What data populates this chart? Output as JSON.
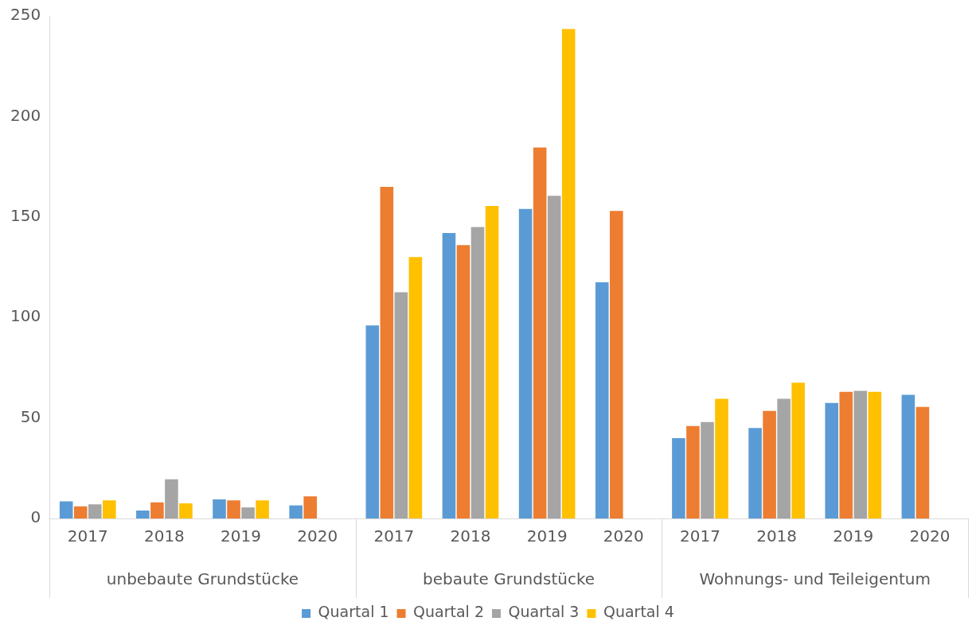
{
  "chart_data": {
    "type": "bar",
    "categories": [
      "2017",
      "2018",
      "2019",
      "2020",
      "2017",
      "2018",
      "2019",
      "2020",
      "2017",
      "2018",
      "2019",
      "2020"
    ],
    "annotations": [
      "unbebaute Grundstücke",
      "bebaute Grundstücke",
      "Wohnungs- und Teileigentum"
    ],
    "series": [
      {
        "name": "Quartal 1",
        "color": "#5b9bd5",
        "values": [
          8.5,
          4,
          9.5,
          6.5,
          96,
          142,
          154,
          117.5,
          40,
          45,
          57.5,
          61.5
        ]
      },
      {
        "name": "Quartal 2",
        "color": "#ed7d31",
        "values": [
          6,
          8,
          9,
          11,
          165,
          136,
          184.5,
          153,
          46,
          53.5,
          63,
          55.5
        ]
      },
      {
        "name": "Quartal 3",
        "color": "#a5a5a5",
        "values": [
          7,
          19.5,
          5.5,
          null,
          112.5,
          145,
          160.5,
          null,
          48,
          59.5,
          63.5,
          null
        ]
      },
      {
        "name": "Quartal 4",
        "color": "#ffc000",
        "values": [
          9,
          7.5,
          9,
          null,
          130,
          155.5,
          243.5,
          null,
          59.5,
          67.5,
          63,
          null
        ]
      }
    ],
    "ylim": [
      0,
      250
    ],
    "yticks": [
      0,
      50,
      100,
      150,
      200,
      250
    ],
    "legend": "bottom"
  }
}
